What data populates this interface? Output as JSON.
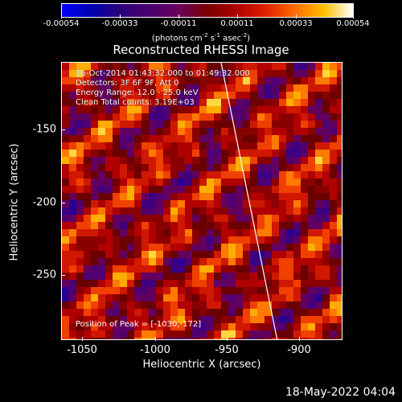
{
  "colorbar": {
    "ticks": [
      "-0.00054",
      "-0.00033",
      "-0.00011",
      "0.00011",
      "0.00033",
      "0.00054"
    ],
    "unit_text": "(photons cm",
    "unit_exp1": "-2",
    "unit_mid1": " s",
    "unit_exp2": "-1",
    "unit_mid2": " asec",
    "unit_exp3": "-2",
    "unit_end": ")"
  },
  "title": "Reconstructed RHESSI Image",
  "info": {
    "line1": "16-Oct-2014 01:43:32.000 to 01:49:32.000",
    "line2": "Detectors: 3F 6F 9F, Att 0",
    "line3": "Energy Range: 12.0 - 25.0 keV",
    "line4": "Clean    Total counts: 3.19E+03"
  },
  "peak": "Position of Peak = [-1030,-172]",
  "axes": {
    "xlabel": "Heliocentric X (arcsec)",
    "ylabel": "Heliocentric Y (arcsec)",
    "xticks": [
      "-1050",
      "-1000",
      "-950",
      "-900"
    ],
    "yticks": [
      "-150",
      "-200",
      "-250"
    ]
  },
  "timestamp": "18-May-2022 04:04"
}
